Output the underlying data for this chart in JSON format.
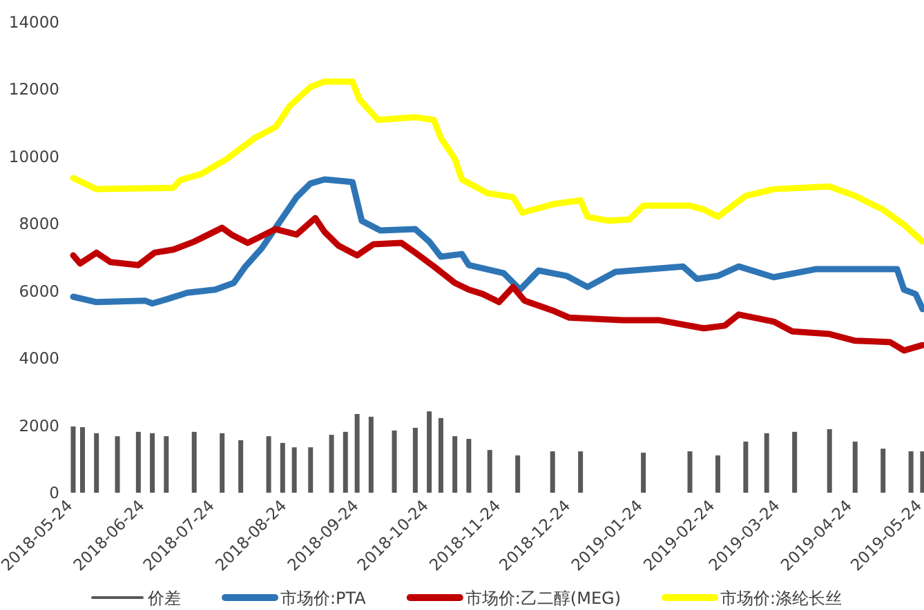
{
  "chart_data": {
    "type": "line",
    "legend": "bottom",
    "grid": false,
    "xlim": [
      "2018-05-24",
      "2019-05-24"
    ],
    "xticks": [
      "2018-05-24",
      "2018-06-24",
      "2018-07-24",
      "2018-08-24",
      "2018-09-24",
      "2018-10-24",
      "2018-11-24",
      "2018-12-24",
      "2019-01-24",
      "2019-02-24",
      "2019-03-24",
      "2019-04-24",
      "2019-05-24"
    ],
    "ylim": [
      0,
      14000
    ],
    "yticks": [
      0,
      2000,
      4000,
      6000,
      8000,
      10000,
      12000,
      14000
    ],
    "series": [
      {
        "name": "价差",
        "type": "bar",
        "color": "#595959",
        "x": [
          "2018-05-24",
          "2018-05-28",
          "2018-06-03",
          "2018-06-12",
          "2018-06-21",
          "2018-06-27",
          "2018-07-03",
          "2018-07-15",
          "2018-07-27",
          "2018-08-04",
          "2018-08-16",
          "2018-08-22",
          "2018-08-27",
          "2018-09-03",
          "2018-09-12",
          "2018-09-18",
          "2018-09-23",
          "2018-09-29",
          "2018-10-09",
          "2018-10-18",
          "2018-10-24",
          "2018-10-29",
          "2018-11-04",
          "2018-11-10",
          "2018-11-19",
          "2018-12-01",
          "2018-12-16",
          "2018-12-28",
          "2019-01-24",
          "2019-02-13",
          "2019-02-25",
          "2019-03-09",
          "2019-03-18",
          "2019-03-30",
          "2019-04-14",
          "2019-04-25",
          "2019-05-07",
          "2019-05-19",
          "2019-05-24"
        ],
        "values": [
          1970,
          1950,
          1770,
          1680,
          1810,
          1770,
          1680,
          1810,
          1770,
          1560,
          1680,
          1480,
          1350,
          1350,
          1720,
          1810,
          2340,
          2260,
          1850,
          1930,
          2420,
          2220,
          1680,
          1600,
          1270,
          1110,
          1230,
          1230,
          1190,
          1230,
          1110,
          1520,
          1770,
          1810,
          1890,
          1520,
          1310,
          1230,
          1230
        ]
      },
      {
        "name": "市场价:PTA",
        "color": "#2e75b6",
        "x": [
          "2018-05-24",
          "2018-06-03",
          "2018-06-24",
          "2018-06-27",
          "2018-07-03",
          "2018-07-12",
          "2018-07-24",
          "2018-08-01",
          "2018-08-06",
          "2018-08-13",
          "2018-08-19",
          "2018-08-28",
          "2018-09-03",
          "2018-09-09",
          "2018-09-21",
          "2018-09-25",
          "2018-10-03",
          "2018-10-18",
          "2018-10-24",
          "2018-10-29",
          "2018-11-07",
          "2018-11-10",
          "2018-11-25",
          "2018-12-02",
          "2018-12-10",
          "2018-12-22",
          "2018-12-31",
          "2019-01-12",
          "2019-02-10",
          "2019-02-16",
          "2019-02-25",
          "2019-03-06",
          "2019-03-21",
          "2019-04-08",
          "2019-05-13",
          "2019-05-16",
          "2019-05-21",
          "2019-05-24"
        ],
        "values": [
          5830,
          5670,
          5710,
          5630,
          5750,
          5950,
          6040,
          6240,
          6730,
          7270,
          7880,
          8790,
          9200,
          9320,
          9240,
          8090,
          7800,
          7840,
          7470,
          7020,
          7100,
          6770,
          6530,
          6040,
          6610,
          6450,
          6120,
          6570,
          6730,
          6360,
          6450,
          6730,
          6410,
          6650,
          6650,
          6040,
          5910,
          5460
        ]
      },
      {
        "name": "市场价:乙二醇(MEG)",
        "color": "#c00000",
        "x": [
          "2018-05-24",
          "2018-05-27",
          "2018-06-03",
          "2018-06-09",
          "2018-06-21",
          "2018-06-28",
          "2018-07-06",
          "2018-07-15",
          "2018-07-27",
          "2018-07-31",
          "2018-08-07",
          "2018-08-19",
          "2018-08-28",
          "2018-09-05",
          "2018-09-09",
          "2018-09-15",
          "2018-09-23",
          "2018-09-30",
          "2018-10-12",
          "2018-10-18",
          "2018-10-26",
          "2018-11-04",
          "2018-11-10",
          "2018-11-16",
          "2018-11-23",
          "2018-11-29",
          "2018-12-04",
          "2018-12-16",
          "2018-12-23",
          "2019-01-15",
          "2019-01-31",
          "2019-02-19",
          "2019-02-28",
          "2019-03-06",
          "2019-03-21",
          "2019-03-29",
          "2019-04-14",
          "2019-04-25",
          "2019-05-10",
          "2019-05-16",
          "2019-05-24"
        ],
        "values": [
          7060,
          6820,
          7140,
          6860,
          6770,
          7140,
          7230,
          7470,
          7880,
          7680,
          7430,
          7840,
          7680,
          8170,
          7760,
          7350,
          7060,
          7390,
          7430,
          7140,
          6730,
          6240,
          6040,
          5910,
          5670,
          6120,
          5710,
          5420,
          5210,
          5130,
          5130,
          4890,
          4970,
          5300,
          5090,
          4800,
          4720,
          4520,
          4480,
          4230,
          4390
        ]
      },
      {
        "name": "市场价:涤纶长丝",
        "color": "#ffff00",
        "x": [
          "2018-05-24",
          "2018-06-03",
          "2018-07-06",
          "2018-07-09",
          "2018-07-18",
          "2018-07-29",
          "2018-08-10",
          "2018-08-19",
          "2018-08-25",
          "2018-09-03",
          "2018-09-09",
          "2018-09-21",
          "2018-09-24",
          "2018-10-02",
          "2018-10-18",
          "2018-10-26",
          "2018-10-29",
          "2018-11-04",
          "2018-11-07",
          "2018-11-18",
          "2018-11-29",
          "2018-12-03",
          "2018-12-16",
          "2018-12-28",
          "2018-12-31",
          "2019-01-09",
          "2019-01-18",
          "2019-01-24",
          "2019-02-13",
          "2019-02-19",
          "2019-02-25",
          "2019-03-09",
          "2019-03-21",
          "2019-04-14",
          "2019-04-25",
          "2019-05-07",
          "2019-05-16",
          "2019-05-24"
        ],
        "values": [
          9360,
          9030,
          9070,
          9300,
          9480,
          9930,
          10550,
          10880,
          11500,
          12070,
          12230,
          12230,
          11700,
          11090,
          11170,
          11090,
          10550,
          9930,
          9320,
          8910,
          8790,
          8330,
          8580,
          8700,
          8210,
          8090,
          8130,
          8540,
          8540,
          8420,
          8210,
          8830,
          9030,
          9110,
          8830,
          8420,
          7970,
          7470
        ]
      }
    ]
  }
}
